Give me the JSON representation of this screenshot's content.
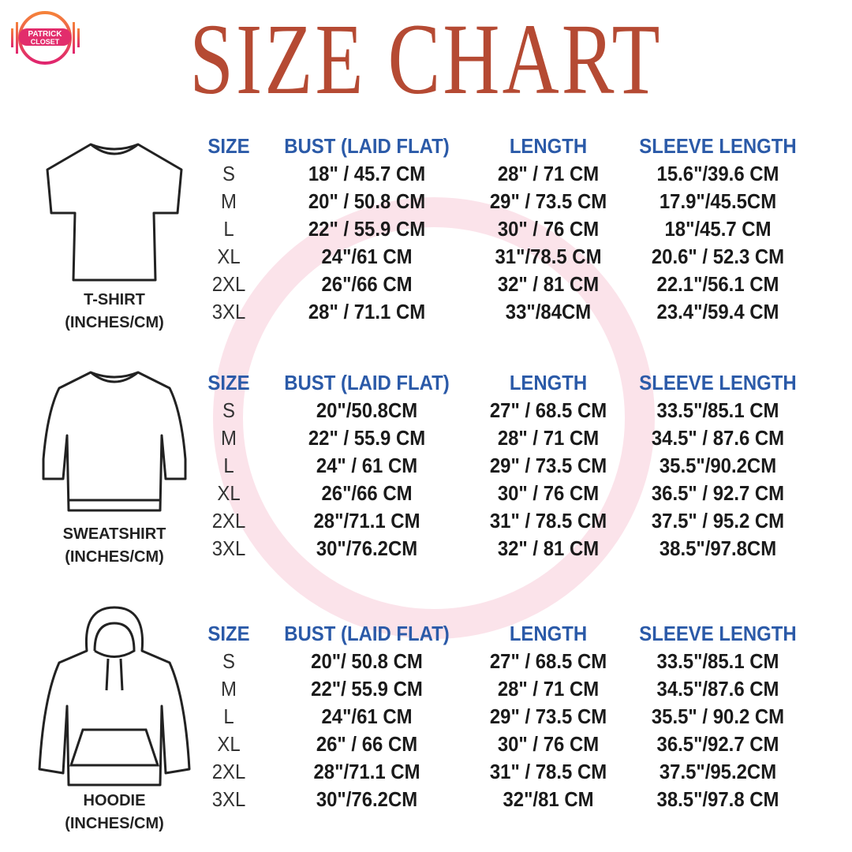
{
  "title": "SIZE CHART",
  "logo": {
    "text": "PATRICK CLOSET",
    "colors": [
      "#f06a3a",
      "#e0246e"
    ]
  },
  "colors": {
    "title": "#b54a33",
    "header": "#2b5aa8",
    "text": "#1a1a1a"
  },
  "headers": [
    "SIZE",
    "BUST (LAID FLAT)",
    "LENGTH",
    "SLEEVE LENGTH"
  ],
  "sections": [
    {
      "name": "T-SHIRT",
      "unit": "(INCHES/CM)",
      "icon": "tshirt-icon",
      "rows": [
        [
          "S",
          "18\" / 45.7 CM",
          "28\" / 71 CM",
          "15.6\"/39.6 CM"
        ],
        [
          "M",
          "20\" / 50.8 CM",
          "29\" / 73.5 CM",
          "17.9\"/45.5CM"
        ],
        [
          "L",
          "22\" / 55.9 CM",
          "30\" / 76 CM",
          "18\"/45.7 CM"
        ],
        [
          "XL",
          "24\"/61 CM",
          "31\"/78.5 CM",
          "20.6\" / 52.3 CM"
        ],
        [
          "2XL",
          "26\"/66 CM",
          "32\" / 81 CM",
          "22.1\"/56.1 CM"
        ],
        [
          "3XL",
          "28\" / 71.1 CM",
          "33\"/84CM",
          "23.4\"/59.4 CM"
        ]
      ]
    },
    {
      "name": "SWEATSHIRT",
      "unit": "(INCHES/CM)",
      "icon": "sweatshirt-icon",
      "rows": [
        [
          "S",
          "20\"/50.8CM",
          "27\" / 68.5 CM",
          "33.5\"/85.1 CM"
        ],
        [
          "M",
          "22\" / 55.9 CM",
          "28\" / 71 CM",
          "34.5\" / 87.6 CM"
        ],
        [
          "L",
          "24\" / 61 CM",
          "29\" / 73.5 CM",
          "35.5\"/90.2CM"
        ],
        [
          "XL",
          "26\"/66 CM",
          "30\" / 76 CM",
          "36.5\" / 92.7 CM"
        ],
        [
          "2XL",
          "28\"/71.1 CM",
          "31\" / 78.5 CM",
          "37.5\" / 95.2 CM"
        ],
        [
          "3XL",
          "30\"/76.2CM",
          "32\" / 81 CM",
          "38.5\"/97.8CM"
        ]
      ]
    },
    {
      "name": "HOODIE",
      "unit": "(INCHES/CM)",
      "icon": "hoodie-icon",
      "rows": [
        [
          "S",
          "20\"/ 50.8 CM",
          "27\" / 68.5 CM",
          "33.5\"/85.1 CM"
        ],
        [
          "M",
          "22\"/ 55.9 CM",
          "28\" / 71 CM",
          "34.5\"/87.6 CM"
        ],
        [
          "L",
          "24\"/61 CM",
          "29\" / 73.5 CM",
          "35.5\" / 90.2 CM"
        ],
        [
          "XL",
          "26\" / 66 CM",
          "30\" / 76 CM",
          "36.5\"/92.7 CM"
        ],
        [
          "2XL",
          "28\"/71.1 CM",
          "31\" / 78.5 CM",
          "37.5\"/95.2CM"
        ],
        [
          "3XL",
          "30\"/76.2CM",
          "32\"/81 CM",
          "38.5\"/97.8 CM"
        ]
      ]
    }
  ]
}
